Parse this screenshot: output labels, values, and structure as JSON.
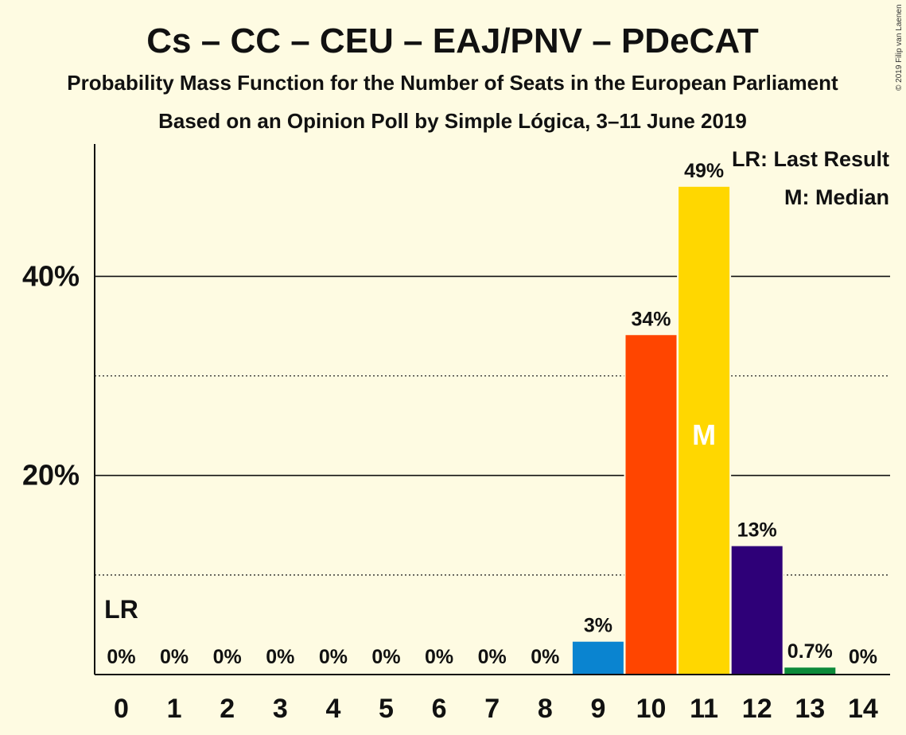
{
  "chart_data": {
    "type": "bar",
    "title": "Cs – CC – CEU – EAJ/PNV – PDeCAT",
    "subtitle": "Probability Mass Function for the Number of Seats in the European Parliament",
    "source_line": "Based on an Opinion Poll by Simple Lógica, 3–11 June 2019",
    "copyright": "© 2019 Filip van Laenen",
    "legend": {
      "lr": "LR: Last Result",
      "median": "M: Median",
      "placement": "top-right"
    },
    "categories": [
      "0",
      "1",
      "2",
      "3",
      "4",
      "5",
      "6",
      "7",
      "8",
      "9",
      "10",
      "11",
      "12",
      "13",
      "14"
    ],
    "values": [
      0,
      0,
      0,
      0,
      0,
      0,
      0,
      0,
      0,
      3.3,
      34.1,
      49,
      12.9,
      0.7,
      0
    ],
    "value_labels": [
      "0%",
      "0%",
      "0%",
      "0%",
      "0%",
      "0%",
      "0%",
      "0%",
      "0%",
      "3%",
      "34%",
      "49%",
      "13%",
      "0.7%",
      "0%"
    ],
    "bar_colors": [
      "#1e8fd5",
      "#1e8fd5",
      "#1e8fd5",
      "#1e8fd5",
      "#1e8fd5",
      "#1e8fd5",
      "#1e8fd5",
      "#1e8fd5",
      "#1e8fd5",
      "#0a84d0",
      "#ff4500",
      "#ffd700",
      "#2e0078",
      "#0c8a3a",
      "#0c8a3a"
    ],
    "y_ticks": [
      {
        "value": 20,
        "label": "20%"
      },
      {
        "value": 40,
        "label": "40%"
      }
    ],
    "minor_gridlines": [
      10,
      30
    ],
    "ylim": [
      0,
      53.3
    ],
    "last_result": {
      "category": "0",
      "marker": "LR"
    },
    "median": {
      "category": "11",
      "marker": "M"
    },
    "xlabel": "",
    "ylabel": ""
  }
}
